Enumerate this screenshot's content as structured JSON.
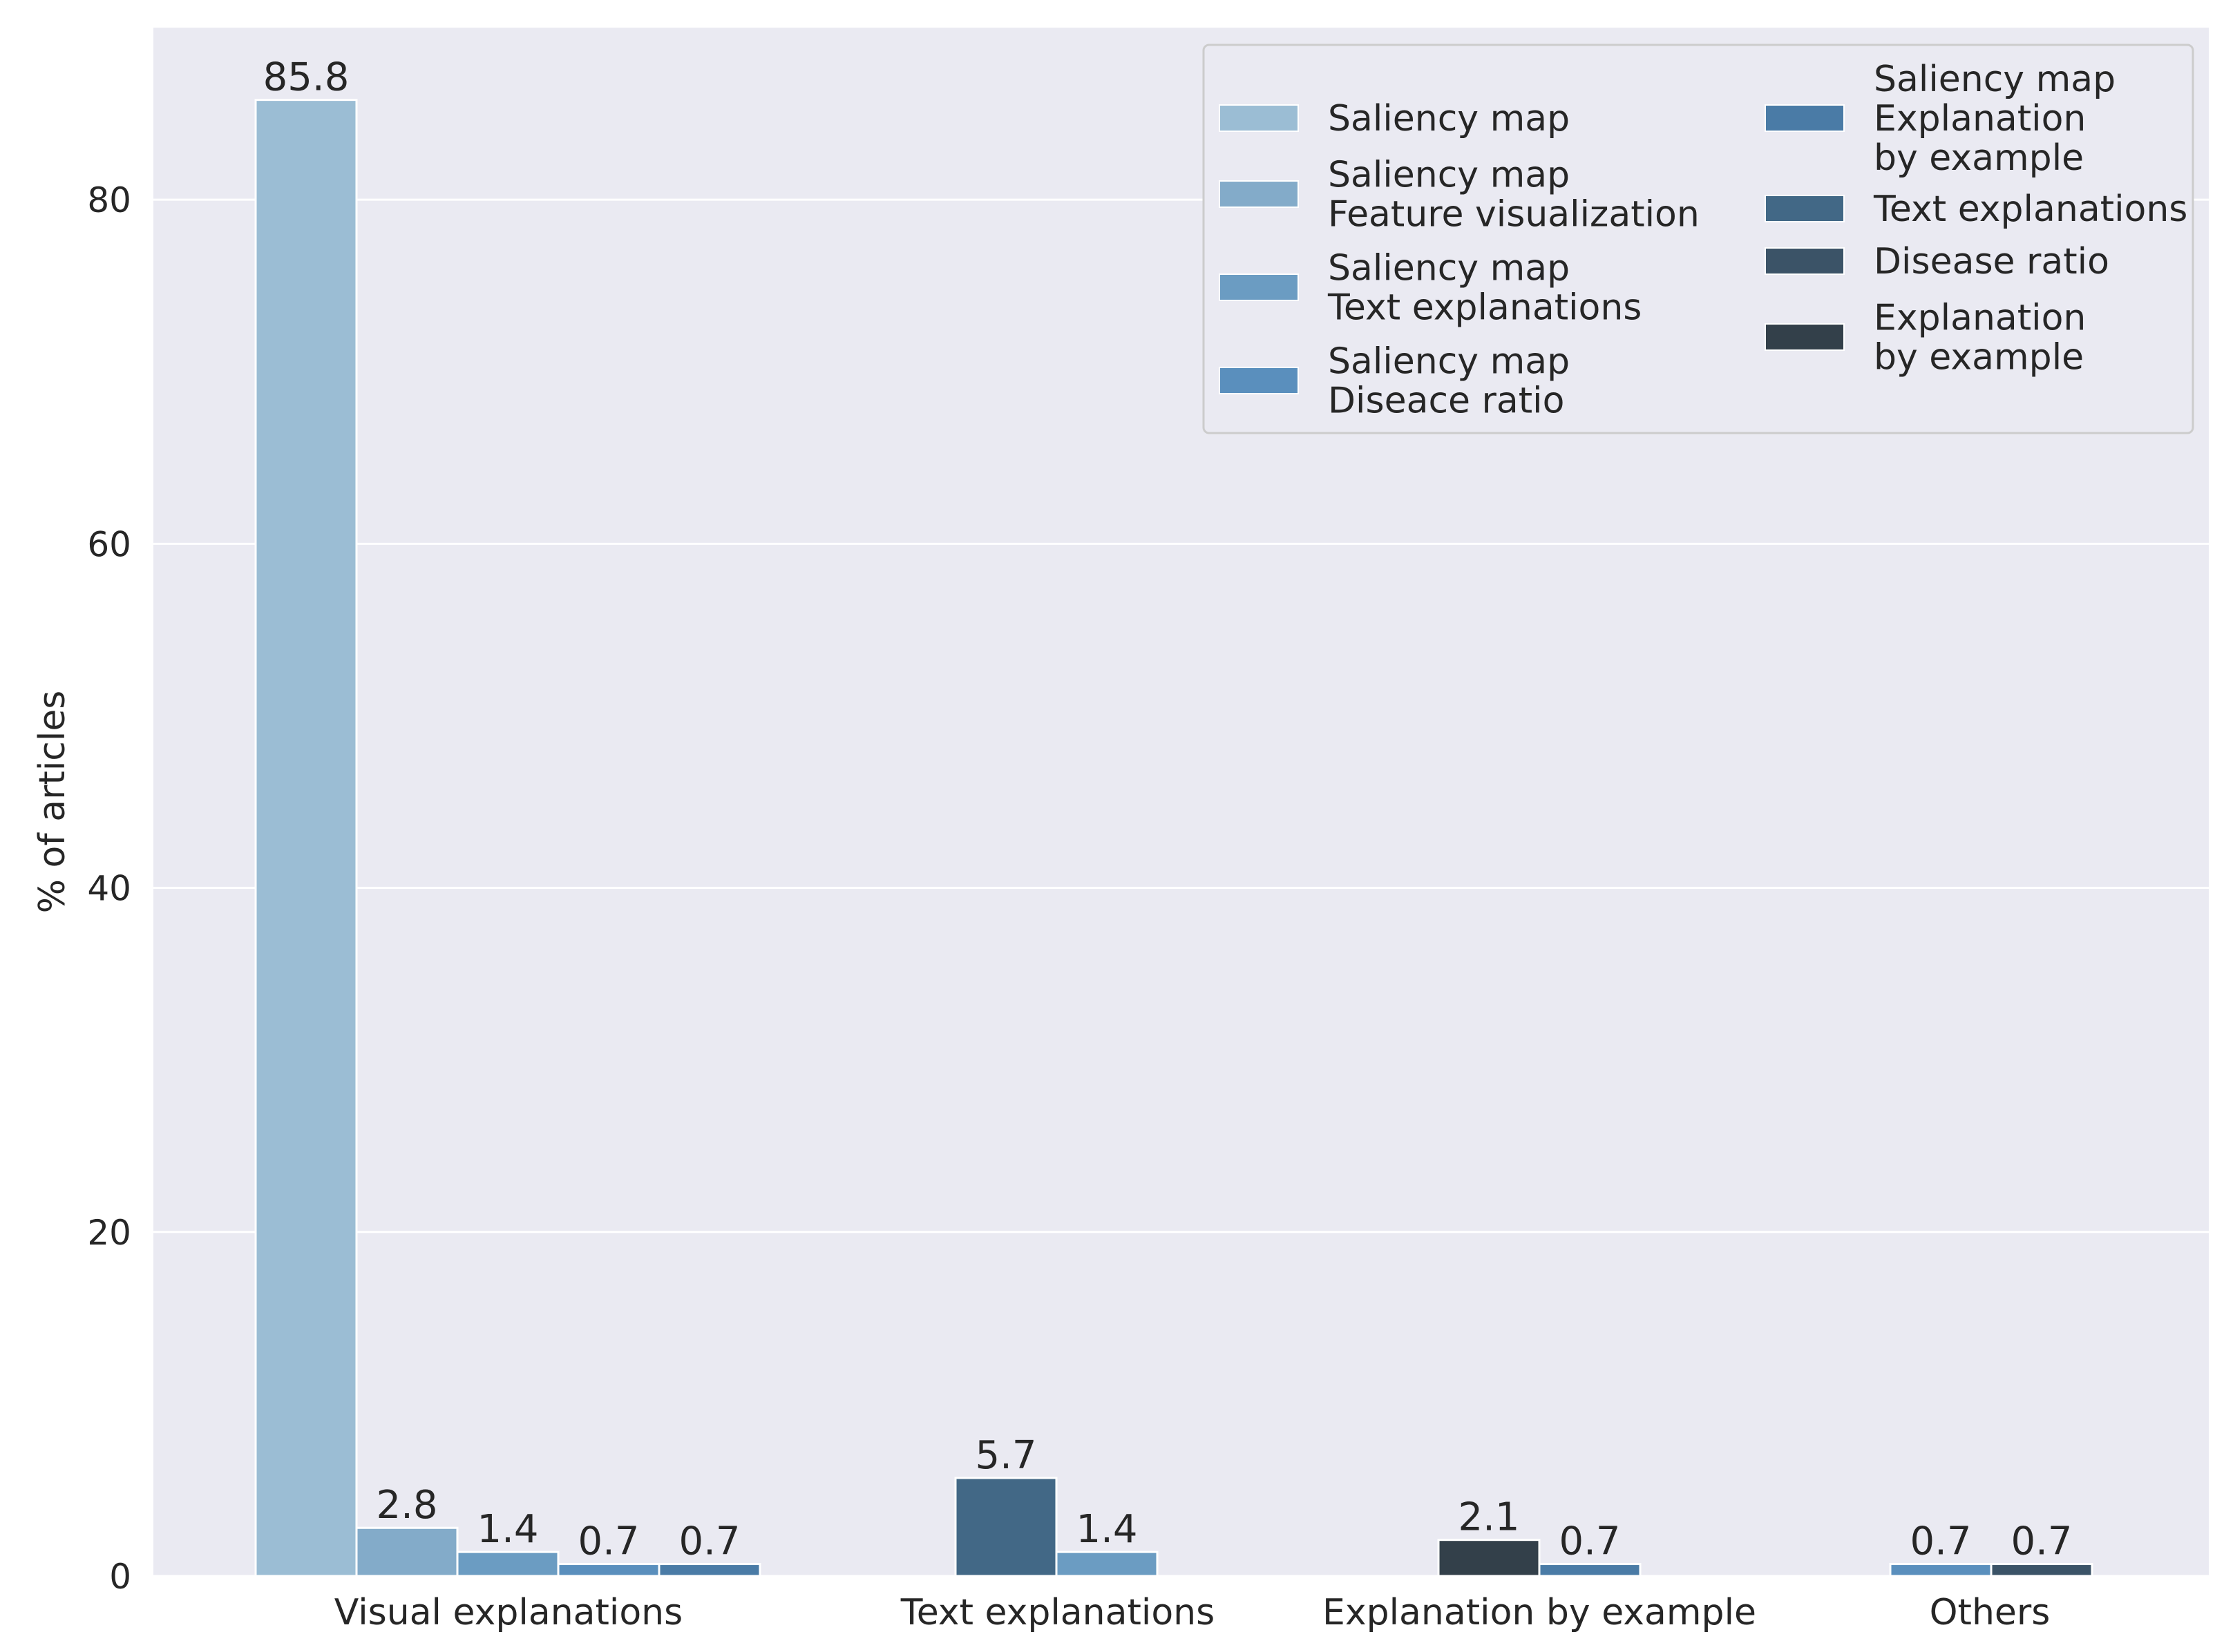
{
  "chart_data": {
    "type": "bar",
    "title": "",
    "xlabel": "",
    "ylabel": "% of articles",
    "ylim": [
      0,
      90
    ],
    "yticks": [
      0,
      20,
      40,
      60,
      80
    ],
    "grid": true,
    "legend_position": "top-right",
    "categories": [
      "Visual explanations",
      "Text explanations",
      "Explanation by example",
      "Others"
    ],
    "series": [
      {
        "id": "s1",
        "name": "Saliency map",
        "legend_lines": [
          "Saliency map"
        ],
        "color": "#9bbdd4"
      },
      {
        "id": "s2",
        "name": "Saliency map Feature visualization",
        "legend_lines": [
          "Saliency map",
          "Feature visualization"
        ],
        "color": "#83abc9"
      },
      {
        "id": "s3",
        "name": "Saliency map Text explanations",
        "legend_lines": [
          "Saliency map",
          "Text explanations"
        ],
        "color": "#6b9cc2"
      },
      {
        "id": "s4",
        "name": "Saliency map Diseace ratio",
        "legend_lines": [
          "Saliency map",
          "Diseace ratio"
        ],
        "color": "#5a8fbd"
      },
      {
        "id": "s5",
        "name": "Saliency map Explanation by example",
        "legend_lines": [
          "Saliency map",
          "Explanation",
          "by example"
        ],
        "color": "#4a7ba6"
      },
      {
        "id": "s6",
        "name": "Text explanations",
        "legend_lines": [
          "Text explanations"
        ],
        "color": "#426886"
      },
      {
        "id": "s7",
        "name": "Disease ratio",
        "legend_lines": [
          "Disease ratio"
        ],
        "color": "#3b5367"
      },
      {
        "id": "s8",
        "name": "Explanation by example",
        "legend_lines": [
          "Explanation",
          "by example"
        ],
        "color": "#33404a"
      }
    ],
    "groups": [
      {
        "category": "Visual explanations",
        "bars": [
          {
            "series": "s1",
            "value": 85.8,
            "label": "85.8"
          },
          {
            "series": "s2",
            "value": 2.8,
            "label": "2.8"
          },
          {
            "series": "s3",
            "value": 1.4,
            "label": "1.4"
          },
          {
            "series": "s4",
            "value": 0.7,
            "label": "0.7"
          },
          {
            "series": "s5",
            "value": 0.7,
            "label": "0.7"
          }
        ]
      },
      {
        "category": "Text explanations",
        "bars": [
          {
            "series": "s6",
            "value": 5.7,
            "label": "5.7"
          },
          {
            "series": "s3",
            "value": 1.4,
            "label": "1.4"
          }
        ]
      },
      {
        "category": "Explanation by example",
        "bars": [
          {
            "series": "s8",
            "value": 2.1,
            "label": "2.1"
          },
          {
            "series": "s5",
            "value": 0.7,
            "label": "0.7"
          }
        ]
      },
      {
        "category": "Others",
        "bars": [
          {
            "series": "s4",
            "value": 0.7,
            "label": "0.7"
          },
          {
            "series": "s7",
            "value": 0.7,
            "label": "0.7"
          }
        ]
      }
    ]
  }
}
